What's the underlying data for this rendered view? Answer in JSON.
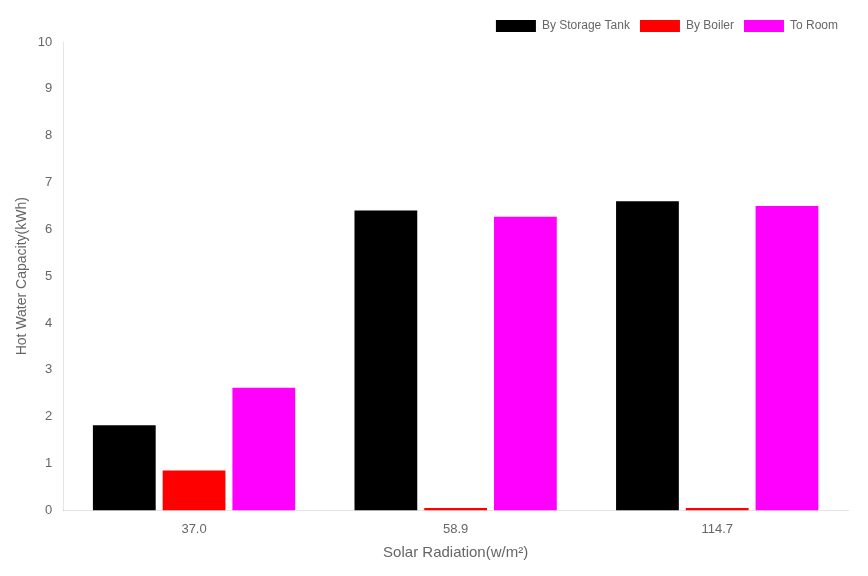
{
  "chart_data": {
    "type": "bar",
    "categories": [
      "37.0",
      "58.9",
      "114.7"
    ],
    "series": [
      {
        "name": "By Storage Tank",
        "color": "#000000",
        "values": [
          1.82,
          6.4,
          6.6
        ]
      },
      {
        "name": "By Boiler",
        "color": "#ff0000",
        "values": [
          0.85,
          0.05,
          0.05
        ]
      },
      {
        "name": "To Room",
        "color": "#ff00ff",
        "values": [
          2.62,
          6.27,
          6.5
        ]
      }
    ],
    "xlabel": "Solar Radiation(w/m²)",
    "ylabel": "Hot Water Capacity(kWh)",
    "ylim": [
      0,
      10
    ],
    "yticks": [
      0,
      1,
      2,
      3,
      4,
      5,
      6,
      7,
      8,
      9,
      10
    ],
    "grid": false,
    "legend": "upper right"
  }
}
